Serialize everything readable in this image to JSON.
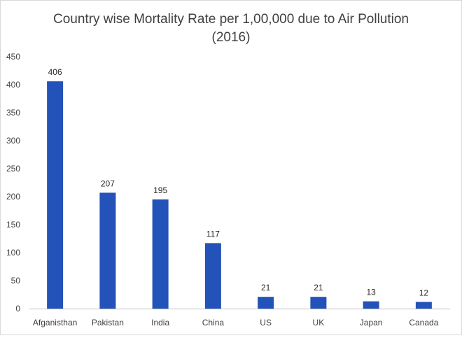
{
  "chart_data": {
    "type": "bar",
    "title": "Country wise Mortality Rate per 1,00,000 due to Air Pollution",
    "subtitle": "(2016)",
    "categories": [
      "Afganisthan",
      "Pakistan",
      "India",
      "China",
      "US",
      "UK",
      "Japan",
      "Canada"
    ],
    "values": [
      406,
      207,
      195,
      117,
      21,
      21,
      13,
      12
    ],
    "data_labels": [
      "406",
      "207",
      "195",
      "117",
      "21",
      "21",
      "13",
      "12"
    ],
    "yticks": [
      "0",
      "50",
      "100",
      "150",
      "200",
      "250",
      "300",
      "350",
      "400",
      "450"
    ],
    "ylim": [
      0,
      450
    ],
    "xlabel": "",
    "ylabel": "",
    "grid": false,
    "bar_color": "#2352B8",
    "axis_color": "#bfbfbf"
  }
}
